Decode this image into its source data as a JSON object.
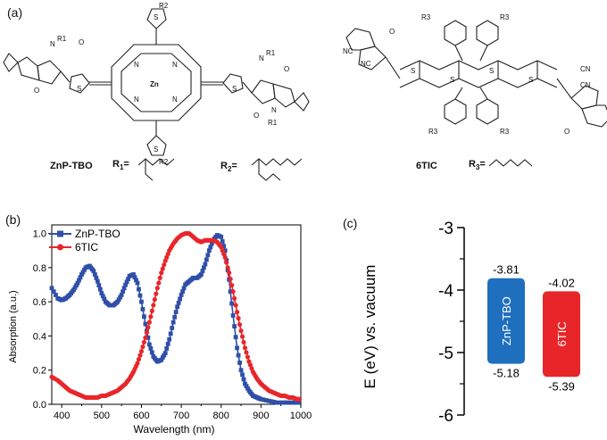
{
  "panels": {
    "a": "(a)",
    "b": "(b)",
    "c": "(c)"
  },
  "structures": {
    "left_name": "ZnP-TBO",
    "r1_label": "R",
    "r1_sub": "1",
    "r1_eq": "=",
    "r2_label": "R",
    "r2_sub": "2",
    "r2_eq": "=",
    "right_name": "6TIC",
    "r3_label": "R",
    "r3_sub": "3",
    "r3_eq": "=",
    "atoms": {
      "zn": "Zn",
      "n": "N",
      "s": "S",
      "o": "O",
      "cn": "CN",
      "nc": "NC",
      "r1": "R1",
      "r2": "R2",
      "r3": "R3"
    }
  },
  "colors": {
    "znp": "#2f4fa8",
    "tic": "#e8262a",
    "znp_bar": "#1f6fbf",
    "tic_bar": "#e8262a"
  },
  "chart_data": [
    {
      "type": "line",
      "xlabel": "Wavelength (nm)",
      "ylabel": "Absorption (a.u.)",
      "xlim": [
        375,
        1000
      ],
      "ylim": [
        0,
        1.05
      ],
      "xticks": [
        400,
        500,
        600,
        700,
        800,
        900,
        1000
      ],
      "yticks": [
        "0.0",
        "0.2",
        "0.4",
        "0.6",
        "0.8",
        "1.0"
      ],
      "legend": "top-left",
      "series": [
        {
          "name": "ZnP-TBO",
          "marker": "square",
          "x": [
            375,
            390,
            400,
            410,
            420,
            430,
            440,
            450,
            460,
            470,
            480,
            490,
            500,
            510,
            520,
            530,
            540,
            550,
            560,
            570,
            580,
            590,
            600,
            610,
            620,
            630,
            640,
            650,
            660,
            670,
            680,
            690,
            700,
            710,
            720,
            730,
            740,
            750,
            760,
            770,
            780,
            790,
            800,
            810,
            820,
            830,
            840,
            850,
            860,
            870,
            880,
            890,
            900,
            920,
            940,
            960,
            980,
            1000
          ],
          "y": [
            0.68,
            0.62,
            0.61,
            0.62,
            0.64,
            0.67,
            0.71,
            0.76,
            0.8,
            0.81,
            0.78,
            0.72,
            0.65,
            0.6,
            0.58,
            0.58,
            0.6,
            0.64,
            0.7,
            0.75,
            0.76,
            0.71,
            0.6,
            0.47,
            0.35,
            0.28,
            0.25,
            0.26,
            0.3,
            0.38,
            0.48,
            0.57,
            0.64,
            0.7,
            0.72,
            0.74,
            0.74,
            0.76,
            0.82,
            0.9,
            0.96,
            0.99,
            0.98,
            0.9,
            0.73,
            0.52,
            0.33,
            0.2,
            0.12,
            0.08,
            0.05,
            0.04,
            0.03,
            0.02,
            0.01,
            0.01,
            0.01,
            0.01
          ]
        },
        {
          "name": "6TIC",
          "marker": "circle",
          "x": [
            375,
            390,
            400,
            410,
            420,
            430,
            440,
            450,
            460,
            470,
            480,
            490,
            500,
            510,
            520,
            530,
            540,
            550,
            560,
            570,
            580,
            590,
            600,
            610,
            620,
            630,
            640,
            650,
            660,
            670,
            680,
            690,
            700,
            710,
            720,
            730,
            740,
            750,
            760,
            770,
            780,
            790,
            800,
            810,
            820,
            830,
            840,
            850,
            860,
            870,
            880,
            890,
            900,
            910,
            920,
            930,
            940,
            950,
            960,
            970,
            980,
            990,
            1000
          ],
          "y": [
            0.16,
            0.14,
            0.12,
            0.1,
            0.08,
            0.07,
            0.06,
            0.05,
            0.04,
            0.04,
            0.04,
            0.04,
            0.05,
            0.05,
            0.06,
            0.07,
            0.08,
            0.1,
            0.12,
            0.15,
            0.19,
            0.24,
            0.31,
            0.39,
            0.48,
            0.58,
            0.68,
            0.77,
            0.84,
            0.9,
            0.94,
            0.97,
            0.99,
            1.0,
            1.0,
            0.98,
            0.96,
            0.95,
            0.96,
            0.96,
            0.96,
            0.95,
            0.92,
            0.86,
            0.77,
            0.66,
            0.54,
            0.43,
            0.33,
            0.25,
            0.19,
            0.15,
            0.12,
            0.1,
            0.08,
            0.07,
            0.06,
            0.05,
            0.05,
            0.04,
            0.04,
            0.03,
            0.03
          ]
        }
      ]
    },
    {
      "type": "bar",
      "ylabel": "E (eV) vs. vacuum",
      "ylim": [
        -6,
        -3
      ],
      "yticks": [
        "-3",
        "-4",
        "-5",
        "-6"
      ],
      "bars": [
        {
          "name": "ZnP-TBO",
          "top": -3.81,
          "bottom": -5.18,
          "top_label": "-3.81",
          "bottom_label": "-5.18"
        },
        {
          "name": "6TIC",
          "top": -4.02,
          "bottom": -5.39,
          "top_label": "-4.02",
          "bottom_label": "-5.39"
        }
      ]
    }
  ]
}
